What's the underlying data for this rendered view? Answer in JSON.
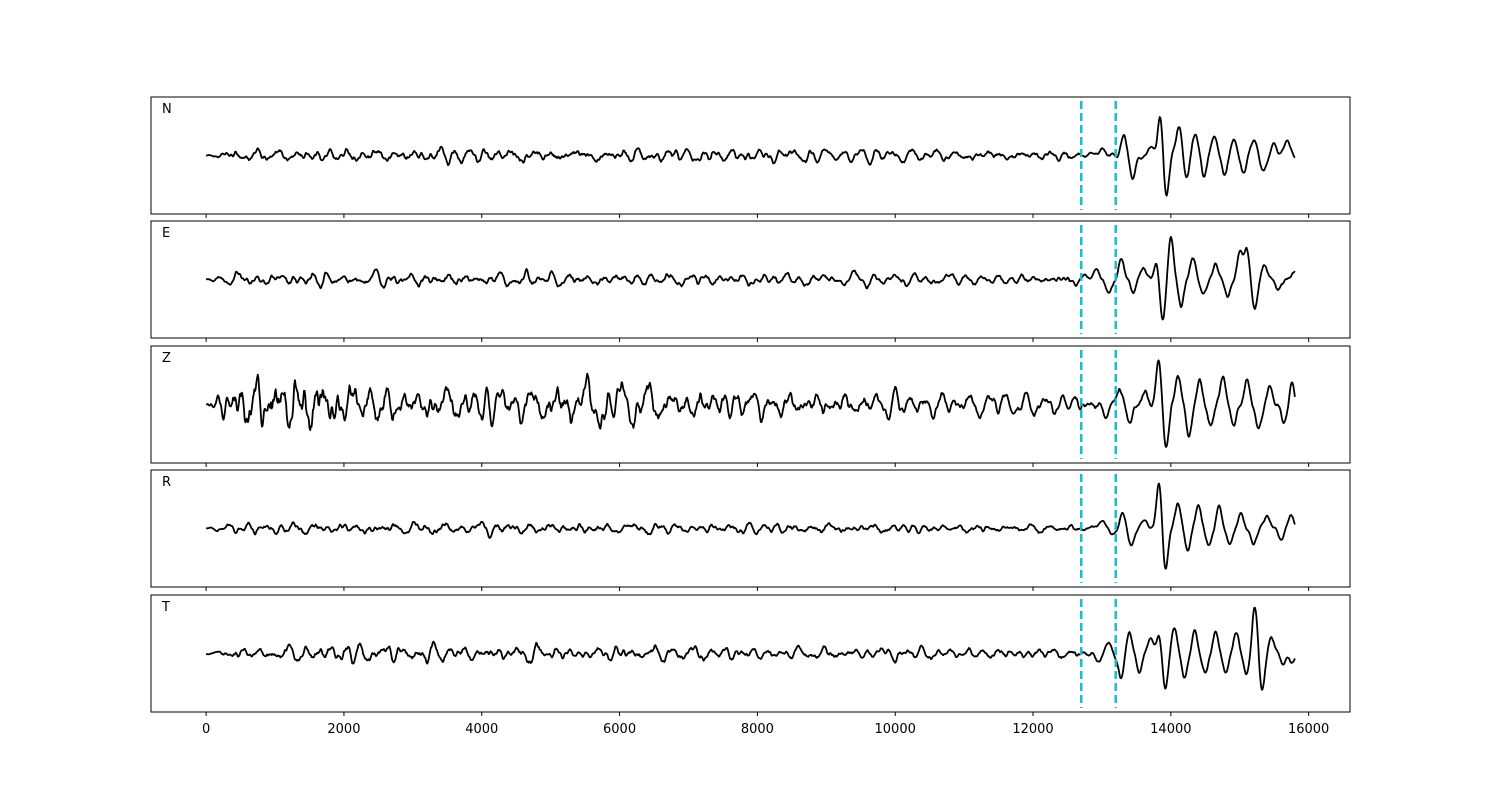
{
  "chart_data": {
    "type": "line",
    "title": "",
    "xlabel": "",
    "ylabel": "",
    "xlim": [
      -800,
      16600
    ],
    "x_ticks": [
      0,
      2000,
      4000,
      6000,
      8000,
      10000,
      12000,
      14000,
      16000
    ],
    "x_tick_labels": [
      "0",
      "2000",
      "4000",
      "6000",
      "8000",
      "10000",
      "12000",
      "14000",
      "16000"
    ],
    "x_end": 15800,
    "grid": false,
    "line_color": "#000000",
    "marker_color": "#17becf",
    "markers": [
      12700,
      13200
    ],
    "panels": [
      {
        "name": "N",
        "noise_amp": 0.1,
        "noise_env": [
          [
            0,
            0.05
          ],
          [
            450,
            0.9
          ],
          [
            2600,
            1.0
          ],
          [
            5600,
            1.0
          ],
          [
            8200,
            0.9
          ],
          [
            12400,
            0.7
          ],
          [
            12700,
            0.8
          ]
        ],
        "peaks": [
          [
            13000,
            0.15,
            60
          ],
          [
            13320,
            0.4,
            55
          ],
          [
            13450,
            -0.45,
            60
          ],
          [
            13700,
            0.1,
            70
          ],
          [
            13850,
            0.85,
            60
          ],
          [
            13930,
            -0.95,
            55
          ],
          [
            14120,
            0.6,
            60
          ],
          [
            14230,
            -0.45,
            55
          ],
          [
            14350,
            0.45,
            60
          ],
          [
            14480,
            -0.45,
            55
          ],
          [
            14640,
            0.45,
            60
          ],
          [
            14780,
            -0.4,
            60
          ],
          [
            14920,
            0.3,
            60
          ],
          [
            15060,
            -0.35,
            55
          ],
          [
            15200,
            0.3,
            60
          ],
          [
            15340,
            -0.25,
            60
          ],
          [
            15500,
            0.2,
            55
          ],
          [
            15700,
            0.3,
            60
          ]
        ]
      },
      {
        "name": "E",
        "noise_amp": 0.1,
        "noise_env": [
          [
            0,
            0.05
          ],
          [
            450,
            0.9
          ],
          [
            3500,
            1.0
          ],
          [
            6000,
            0.9
          ],
          [
            8500,
            0.85
          ],
          [
            12400,
            0.7
          ],
          [
            12700,
            0.9
          ]
        ],
        "peaks": [
          [
            12900,
            0.2,
            60
          ],
          [
            13100,
            -0.25,
            60
          ],
          [
            13280,
            0.45,
            55
          ],
          [
            13450,
            -0.3,
            55
          ],
          [
            13600,
            0.25,
            60
          ],
          [
            13800,
            0.35,
            55
          ],
          [
            13880,
            -0.85,
            55
          ],
          [
            14000,
            0.85,
            55
          ],
          [
            14150,
            -0.55,
            55
          ],
          [
            14320,
            0.45,
            55
          ],
          [
            14480,
            -0.3,
            60
          ],
          [
            14650,
            0.35,
            55
          ],
          [
            14820,
            -0.35,
            55
          ],
          [
            15000,
            0.5,
            55
          ],
          [
            15100,
            0.65,
            55
          ],
          [
            15220,
            -0.65,
            55
          ],
          [
            15350,
            0.3,
            60
          ],
          [
            15550,
            -0.15,
            60
          ],
          [
            15800,
            0.1,
            60
          ]
        ]
      },
      {
        "name": "Z",
        "noise_amp": 0.3,
        "noise_env": [
          [
            0,
            0.1
          ],
          [
            450,
            1.0
          ],
          [
            900,
            1.7
          ],
          [
            1700,
            1.5
          ],
          [
            2400,
            0.9
          ],
          [
            4500,
            0.8
          ],
          [
            5500,
            1.0
          ],
          [
            6200,
            0.85
          ],
          [
            8000,
            0.65
          ],
          [
            11500,
            0.45
          ],
          [
            12700,
            0.4
          ]
        ],
        "peaks": [
          [
            13050,
            -0.2,
            60
          ],
          [
            13250,
            0.3,
            55
          ],
          [
            13420,
            -0.35,
            55
          ],
          [
            13620,
            0.2,
            60
          ],
          [
            13830,
            0.9,
            55
          ],
          [
            13930,
            -0.9,
            55
          ],
          [
            14100,
            0.55,
            55
          ],
          [
            14260,
            -0.55,
            55
          ],
          [
            14420,
            0.45,
            55
          ],
          [
            14580,
            -0.45,
            55
          ],
          [
            14750,
            0.5,
            55
          ],
          [
            14930,
            -0.35,
            55
          ],
          [
            15100,
            0.45,
            55
          ],
          [
            15280,
            -0.45,
            60
          ],
          [
            15450,
            0.35,
            55
          ],
          [
            15650,
            -0.4,
            55
          ],
          [
            15760,
            0.45,
            50
          ]
        ]
      },
      {
        "name": "R",
        "noise_amp": 0.09,
        "noise_env": [
          [
            0,
            0.05
          ],
          [
            450,
            0.9
          ],
          [
            3000,
            1.0
          ],
          [
            6000,
            0.9
          ],
          [
            9000,
            0.8
          ],
          [
            12400,
            0.6
          ],
          [
            12700,
            0.7
          ]
        ],
        "peaks": [
          [
            13000,
            0.2,
            60
          ],
          [
            13150,
            -0.15,
            55
          ],
          [
            13300,
            0.3,
            55
          ],
          [
            13420,
            -0.35,
            55
          ],
          [
            13600,
            0.15,
            60
          ],
          [
            13830,
            0.95,
            55
          ],
          [
            13920,
            -0.85,
            55
          ],
          [
            14100,
            0.5,
            55
          ],
          [
            14250,
            -0.4,
            55
          ],
          [
            14400,
            0.45,
            55
          ],
          [
            14550,
            -0.35,
            55
          ],
          [
            14700,
            0.45,
            55
          ],
          [
            14860,
            -0.35,
            55
          ],
          [
            15020,
            0.3,
            55
          ],
          [
            15200,
            -0.3,
            55
          ],
          [
            15400,
            0.25,
            60
          ],
          [
            15600,
            -0.2,
            55
          ],
          [
            15750,
            0.25,
            55
          ]
        ]
      },
      {
        "name": "T",
        "noise_amp": 0.13,
        "noise_env": [
          [
            0,
            0.05
          ],
          [
            450,
            0.7
          ],
          [
            1800,
            1.0
          ],
          [
            3500,
            1.0
          ],
          [
            6000,
            0.85
          ],
          [
            8500,
            0.7
          ],
          [
            12400,
            0.55
          ],
          [
            12700,
            0.6
          ]
        ],
        "peaks": [
          [
            12950,
            -0.15,
            60
          ],
          [
            13100,
            0.2,
            55
          ],
          [
            13280,
            -0.5,
            55
          ],
          [
            13400,
            0.4,
            55
          ],
          [
            13550,
            -0.35,
            55
          ],
          [
            13700,
            0.3,
            55
          ],
          [
            13830,
            0.45,
            50
          ],
          [
            13920,
            -0.75,
            55
          ],
          [
            14050,
            0.55,
            55
          ],
          [
            14200,
            -0.5,
            55
          ],
          [
            14350,
            0.45,
            55
          ],
          [
            14500,
            -0.45,
            55
          ],
          [
            14650,
            0.45,
            55
          ],
          [
            14800,
            -0.4,
            55
          ],
          [
            14950,
            0.45,
            55
          ],
          [
            15100,
            -0.5,
            55
          ],
          [
            15220,
            1.0,
            55
          ],
          [
            15320,
            -0.75,
            55
          ],
          [
            15460,
            0.35,
            55
          ],
          [
            15620,
            -0.2,
            55
          ],
          [
            15760,
            -0.2,
            55
          ]
        ]
      }
    ]
  }
}
